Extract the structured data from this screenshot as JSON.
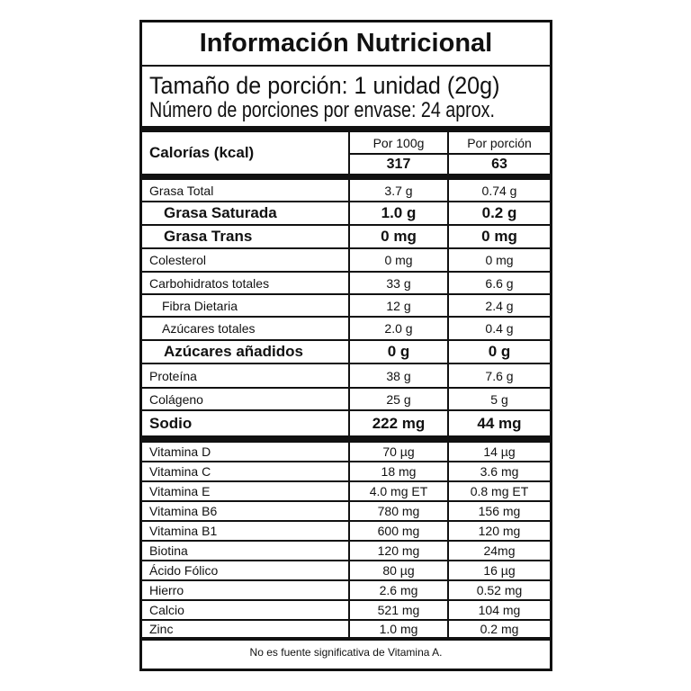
{
  "title": "Información Nutricional",
  "serving_size": "Tamaño de porción: 1 unidad (20g)",
  "servings_per_container": "Número de porciones por envase: 24 aprox.",
  "calories": {
    "label": "Calorías (kcal)",
    "col1_header": "Por 100g",
    "col2_header": "Por porción",
    "per100": "317",
    "perServing": "63"
  },
  "nutrients": [
    {
      "name": "Grasa Total",
      "per100": "3.7 g",
      "perServing": "0.74 g",
      "style": ""
    },
    {
      "name": "Grasa Saturada",
      "per100": "1.0 g",
      "perServing": "0.2 g",
      "style": "bold indent"
    },
    {
      "name": "Grasa Trans",
      "per100": "0 mg",
      "perServing": "0 mg",
      "style": "bold indent"
    },
    {
      "name": "Colesterol",
      "per100": "0 mg",
      "perServing": "0 mg",
      "style": ""
    },
    {
      "name": "Carbohidratos totales",
      "per100": "33 g",
      "perServing": "6.6 g",
      "style": ""
    },
    {
      "name": "Fibra Dietaria",
      "per100": "12 g",
      "perServing": "2.4 g",
      "style": "sub"
    },
    {
      "name": "Azúcares totales",
      "per100": "2.0 g",
      "perServing": "0.4 g",
      "style": "sub"
    },
    {
      "name": "Azúcares añadidos",
      "per100": "0 g",
      "perServing": "0 g",
      "style": "bold indent"
    },
    {
      "name": "Proteína",
      "per100": "38 g",
      "perServing": "7.6 g",
      "style": ""
    },
    {
      "name": "Colágeno",
      "per100": "25 g",
      "perServing": "5 g",
      "style": ""
    },
    {
      "name": "Sodio",
      "per100": "222 mg",
      "perServing": "44 mg",
      "style": "bold thick"
    }
  ],
  "vitamins": [
    {
      "name": "Vitamina D",
      "per100": "70 µg",
      "perServing": "14 µg"
    },
    {
      "name": "Vitamina C",
      "per100": "18 mg",
      "perServing": "3.6 mg"
    },
    {
      "name": "Vitamina E",
      "per100": "4.0 mg ET",
      "perServing": "0.8 mg ET"
    },
    {
      "name": "Vitamina B6",
      "per100": "780 mg",
      "perServing": "156 mg"
    },
    {
      "name": "Vitamina B1",
      "per100": "600 mg",
      "perServing": "120 mg"
    },
    {
      "name": "Biotina",
      "per100": "120 mg",
      "perServing": "24mg"
    },
    {
      "name": "Ácido Fólico",
      "per100": "80 µg",
      "perServing": "16 µg"
    },
    {
      "name": "Hierro",
      "per100": "2.6 mg",
      "perServing": "0.52 mg"
    },
    {
      "name": "Calcio",
      "per100": "521 mg",
      "perServing": "104 mg"
    },
    {
      "name": "Zinc",
      "per100": "1.0 mg",
      "perServing": "0.2 mg"
    }
  ],
  "footnote": "No es fuente significativa de Vitamina A."
}
